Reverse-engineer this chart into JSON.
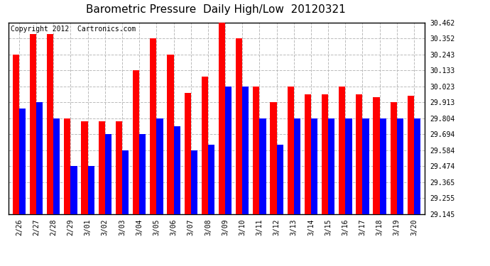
{
  "title": "Barometric Pressure  Daily High/Low  20120321",
  "copyright": "Copyright 2012  Cartronics.com",
  "dates": [
    "2/26",
    "2/27",
    "2/28",
    "2/29",
    "3/01",
    "3/02",
    "3/03",
    "3/04",
    "3/05",
    "3/06",
    "3/07",
    "3/08",
    "3/09",
    "3/10",
    "3/11",
    "3/12",
    "3/13",
    "3/14",
    "3/15",
    "3/16",
    "3/17",
    "3/18",
    "3/19",
    "3/20"
  ],
  "highs": [
    30.243,
    30.382,
    30.382,
    29.804,
    29.784,
    29.784,
    29.784,
    30.133,
    30.352,
    30.243,
    29.98,
    30.093,
    30.462,
    30.352,
    30.023,
    29.913,
    30.023,
    29.97,
    29.97,
    30.023,
    29.97,
    29.95,
    29.913,
    29.96
  ],
  "lows": [
    29.87,
    29.913,
    29.804,
    29.474,
    29.474,
    29.694,
    29.584,
    29.694,
    29.804,
    29.75,
    29.584,
    29.62,
    30.023,
    30.023,
    29.804,
    29.62,
    29.804,
    29.804,
    29.804,
    29.804,
    29.804,
    29.804,
    29.804,
    29.804
  ],
  "ylim_min": 29.145,
  "ylim_max": 30.462,
  "yticks": [
    29.145,
    29.255,
    29.365,
    29.474,
    29.584,
    29.694,
    29.804,
    29.913,
    30.023,
    30.133,
    30.243,
    30.352,
    30.462
  ],
  "high_color": "#ff0000",
  "low_color": "#0000ff",
  "bg_color": "#ffffff",
  "grid_color": "#bbbbbb",
  "title_fontsize": 11,
  "copyright_fontsize": 7
}
